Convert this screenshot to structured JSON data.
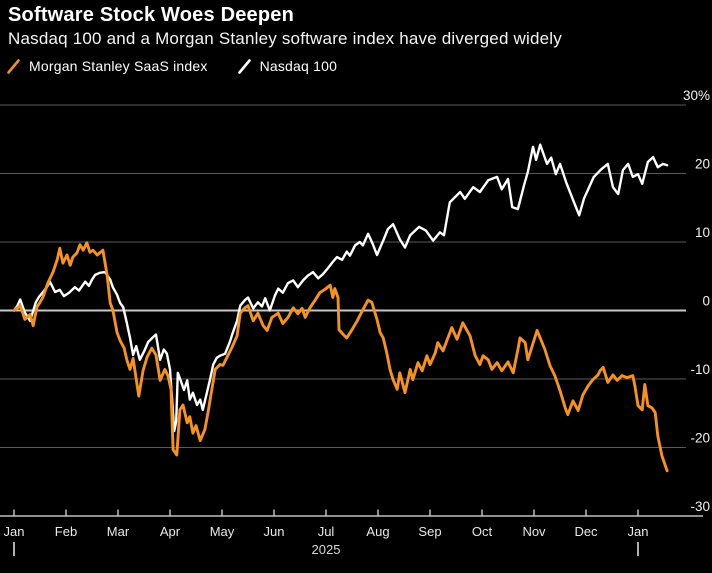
{
  "chart_data": {
    "type": "line",
    "title": "Software Stock Woes Deepen",
    "subtitle": "Nasdaq 100 and a Morgan Stanley software index have diverged widely",
    "x_unit": "months since Jan 2025 (0 = Jan 2025, 12 = Jan 2026)",
    "x_axis": {
      "tick_labels": [
        "Jan",
        "Feb",
        "Mar",
        "Apr",
        "May",
        "Jun",
        "Jul",
        "Aug",
        "Sep",
        "Oct",
        "Nov",
        "Dec",
        "Jan"
      ],
      "year_label": "2025",
      "year_label_month": 6,
      "year_marker_months": [
        0,
        12
      ]
    },
    "y_axis": {
      "unit": "%",
      "ylim": [
        -30,
        30
      ],
      "tick_values": [
        30,
        20,
        10,
        0,
        -10,
        -20,
        -30
      ],
      "tick_labels": [
        "30%",
        "20",
        "10",
        "0",
        "-10",
        "-20",
        "-30"
      ],
      "grid": true
    },
    "colors": {
      "background": "#000000",
      "grid": "#5a5a5a",
      "zero_line": "#c8c8c8",
      "axis_line": "#bebebe",
      "tick": "#d9d9d9",
      "month_label": "#e8e8e8",
      "year_label": "#d9d9d9",
      "y_label": "#f2f2f2"
    },
    "series": [
      {
        "name": "Morgan Stanley SaaS index",
        "color": "#f6921e",
        "end_value_pct": -23.4,
        "points": [
          [
            0,
            0
          ],
          [
            0.02,
            0.1
          ],
          [
            0.12,
            0.7
          ],
          [
            0.21,
            -1.3
          ],
          [
            0.31,
            -0.6
          ],
          [
            0.37,
            -2.2
          ],
          [
            0.44,
            0.5
          ],
          [
            0.5,
            1.2
          ],
          [
            0.56,
            2
          ],
          [
            0.65,
            4
          ],
          [
            0.75,
            5.6
          ],
          [
            0.83,
            7.4
          ],
          [
            0.88,
            9.1
          ],
          [
            0.94,
            6.9
          ],
          [
            1.02,
            8.1
          ],
          [
            1.08,
            6.6
          ],
          [
            1.13,
            7.8
          ],
          [
            1.21,
            8.4
          ],
          [
            1.27,
            9.6
          ],
          [
            1.33,
            8.8
          ],
          [
            1.4,
            9.9
          ],
          [
            1.46,
            8.5
          ],
          [
            1.52,
            8.8
          ],
          [
            1.6,
            8.1
          ],
          [
            1.71,
            8.8
          ],
          [
            1.79,
            5.2
          ],
          [
            1.85,
            1.1
          ],
          [
            1.9,
            0.1
          ],
          [
            1.98,
            -3.2
          ],
          [
            2.04,
            -4.4
          ],
          [
            2.12,
            -5.5
          ],
          [
            2.17,
            -7.2
          ],
          [
            2.23,
            -8.6
          ],
          [
            2.29,
            -7
          ],
          [
            2.35,
            -10
          ],
          [
            2.4,
            -12.5
          ],
          [
            2.48,
            -8.8
          ],
          [
            2.56,
            -6.8
          ],
          [
            2.65,
            -5.5
          ],
          [
            2.73,
            -6.5
          ],
          [
            2.81,
            -10.2
          ],
          [
            2.9,
            -8.6
          ],
          [
            2.96,
            -9.5
          ],
          [
            3.02,
            -11.5
          ],
          [
            3.06,
            -20.3
          ],
          [
            3.13,
            -21.1
          ],
          [
            3.19,
            -14.5
          ],
          [
            3.25,
            -13.8
          ],
          [
            3.33,
            -16.4
          ],
          [
            3.38,
            -15.5
          ],
          [
            3.44,
            -17.9
          ],
          [
            3.5,
            -16.8
          ],
          [
            3.58,
            -19
          ],
          [
            3.67,
            -17.4
          ],
          [
            3.73,
            -14.9
          ],
          [
            3.81,
            -11.3
          ],
          [
            3.87,
            -8.6
          ],
          [
            3.96,
            -7.9
          ],
          [
            4.02,
            -8
          ],
          [
            4.13,
            -6.3
          ],
          [
            4.19,
            -5.4
          ],
          [
            4.29,
            -3.7
          ],
          [
            4.35,
            -0.4
          ],
          [
            4.44,
            0.4
          ],
          [
            4.5,
            0.7
          ],
          [
            4.6,
            -1.5
          ],
          [
            4.69,
            -0.4
          ],
          [
            4.79,
            -2.2
          ],
          [
            4.87,
            -2.9
          ],
          [
            4.96,
            -1
          ],
          [
            5.08,
            -0.4
          ],
          [
            5.17,
            -1.9
          ],
          [
            5.27,
            -1
          ],
          [
            5.37,
            0.4
          ],
          [
            5.46,
            -0.5
          ],
          [
            5.54,
            0.3
          ],
          [
            5.6,
            -1
          ],
          [
            5.69,
            0.4
          ],
          [
            5.79,
            1.5
          ],
          [
            5.88,
            2.6
          ],
          [
            5.98,
            3.1
          ],
          [
            6.08,
            3.7
          ],
          [
            6.13,
            1.9
          ],
          [
            6.17,
            3.2
          ],
          [
            6.23,
            1.9
          ],
          [
            6.25,
            -2.8
          ],
          [
            6.33,
            -3.5
          ],
          [
            6.4,
            -4
          ],
          [
            6.5,
            -2.8
          ],
          [
            6.6,
            -1.5
          ],
          [
            6.75,
            0.7
          ],
          [
            6.81,
            1.5
          ],
          [
            6.88,
            1.2
          ],
          [
            6.98,
            -1.3
          ],
          [
            7.04,
            -3.2
          ],
          [
            7.1,
            -4
          ],
          [
            7.17,
            -6.2
          ],
          [
            7.23,
            -8.6
          ],
          [
            7.29,
            -10.1
          ],
          [
            7.37,
            -11.5
          ],
          [
            7.42,
            -9.1
          ],
          [
            7.52,
            -12
          ],
          [
            7.62,
            -8.6
          ],
          [
            7.67,
            -10.1
          ],
          [
            7.77,
            -7.6
          ],
          [
            7.85,
            -8.8
          ],
          [
            7.94,
            -6.6
          ],
          [
            8,
            -7.9
          ],
          [
            8.1,
            -6.2
          ],
          [
            8.15,
            -4.7
          ],
          [
            8.25,
            -5.9
          ],
          [
            8.42,
            -2.5
          ],
          [
            8.52,
            -4.2
          ],
          [
            8.63,
            -1.8
          ],
          [
            8.77,
            -3.7
          ],
          [
            8.87,
            -6.6
          ],
          [
            8.96,
            -7.9
          ],
          [
            9.02,
            -6.6
          ],
          [
            9.12,
            -7.2
          ],
          [
            9.19,
            -8.6
          ],
          [
            9.29,
            -7.6
          ],
          [
            9.38,
            -8.8
          ],
          [
            9.5,
            -7.5
          ],
          [
            9.6,
            -9.1
          ],
          [
            9.69,
            -5.7
          ],
          [
            9.73,
            -4
          ],
          [
            9.83,
            -4.7
          ],
          [
            9.88,
            -7.2
          ],
          [
            10.06,
            -2.9
          ],
          [
            10.12,
            -4
          ],
          [
            10.21,
            -5.7
          ],
          [
            10.31,
            -8.1
          ],
          [
            10.4,
            -9.5
          ],
          [
            10.5,
            -11.7
          ],
          [
            10.6,
            -14.2
          ],
          [
            10.65,
            -15.2
          ],
          [
            10.75,
            -13.2
          ],
          [
            10.85,
            -14.6
          ],
          [
            10.94,
            -12.3
          ],
          [
            11.04,
            -11
          ],
          [
            11.13,
            -10.1
          ],
          [
            11.23,
            -9.4
          ],
          [
            11.27,
            -8.8
          ],
          [
            11.33,
            -8.3
          ],
          [
            11.42,
            -10.5
          ],
          [
            11.52,
            -9.4
          ],
          [
            11.6,
            -10.2
          ],
          [
            11.69,
            -9.5
          ],
          [
            11.79,
            -9.8
          ],
          [
            11.9,
            -9.5
          ],
          [
            11.94,
            -11
          ],
          [
            12,
            -13.9
          ],
          [
            12.08,
            -14.5
          ],
          [
            12.13,
            -10.8
          ],
          [
            12.19,
            -13.9
          ],
          [
            12.27,
            -14.2
          ],
          [
            12.33,
            -14.9
          ],
          [
            12.38,
            -18.3
          ],
          [
            12.46,
            -21.2
          ],
          [
            12.56,
            -23.4
          ]
        ]
      },
      {
        "name": "Nasdaq 100",
        "color": "#ffffff",
        "end_value_pct": 21.2,
        "points": [
          [
            0,
            0
          ],
          [
            0.06,
            0.6
          ],
          [
            0.12,
            1.6
          ],
          [
            0.21,
            -0.3
          ],
          [
            0.31,
            -1.5
          ],
          [
            0.42,
            1.2
          ],
          [
            0.48,
            2
          ],
          [
            0.56,
            2.7
          ],
          [
            0.63,
            3.4
          ],
          [
            0.69,
            4.2
          ],
          [
            0.79,
            2.7
          ],
          [
            0.88,
            3
          ],
          [
            0.96,
            2.1
          ],
          [
            1.06,
            2.6
          ],
          [
            1.17,
            3.4
          ],
          [
            1.25,
            2.9
          ],
          [
            1.37,
            4.2
          ],
          [
            1.44,
            3.6
          ],
          [
            1.5,
            4.5
          ],
          [
            1.56,
            5.2
          ],
          [
            1.65,
            5.5
          ],
          [
            1.75,
            5.6
          ],
          [
            1.85,
            4.5
          ],
          [
            1.9,
            3.4
          ],
          [
            1.98,
            2.3
          ],
          [
            2.04,
            1.1
          ],
          [
            2.1,
            0.5
          ],
          [
            2.17,
            -1.8
          ],
          [
            2.23,
            -4
          ],
          [
            2.29,
            -6.5
          ],
          [
            2.35,
            -5.2
          ],
          [
            2.42,
            -7.2
          ],
          [
            2.5,
            -6
          ],
          [
            2.58,
            -4.6
          ],
          [
            2.66,
            -4
          ],
          [
            2.73,
            -3.5
          ],
          [
            2.81,
            -7.2
          ],
          [
            2.88,
            -5.7
          ],
          [
            2.94,
            -6.3
          ],
          [
            3,
            -8.6
          ],
          [
            3.04,
            -13
          ],
          [
            3.08,
            -17.6
          ],
          [
            3.12,
            -16.2
          ],
          [
            3.15,
            -9.1
          ],
          [
            3.21,
            -10.3
          ],
          [
            3.27,
            -11.6
          ],
          [
            3.33,
            -10.2
          ],
          [
            3.38,
            -13
          ],
          [
            3.44,
            -12
          ],
          [
            3.52,
            -13.8
          ],
          [
            3.58,
            -13
          ],
          [
            3.63,
            -14.5
          ],
          [
            3.71,
            -12
          ],
          [
            3.77,
            -10.1
          ],
          [
            3.83,
            -7.9
          ],
          [
            3.9,
            -6.9
          ],
          [
            3.96,
            -6.6
          ],
          [
            4.06,
            -6.3
          ],
          [
            4.15,
            -4.6
          ],
          [
            4.21,
            -3.2
          ],
          [
            4.29,
            -1.5
          ],
          [
            4.35,
            0.7
          ],
          [
            4.44,
            1.5
          ],
          [
            4.5,
            1.9
          ],
          [
            4.6,
            0.3
          ],
          [
            4.69,
            1.2
          ],
          [
            4.77,
            0.6
          ],
          [
            4.83,
            1.8
          ],
          [
            4.92,
            0
          ],
          [
            5.02,
            2.2
          ],
          [
            5.08,
            3.2
          ],
          [
            5.17,
            2.6
          ],
          [
            5.27,
            4
          ],
          [
            5.37,
            4.4
          ],
          [
            5.46,
            3.4
          ],
          [
            5.56,
            4.4
          ],
          [
            5.65,
            5.1
          ],
          [
            5.75,
            5.6
          ],
          [
            5.85,
            4.7
          ],
          [
            5.94,
            5.3
          ],
          [
            6.04,
            6.2
          ],
          [
            6.12,
            7
          ],
          [
            6.21,
            7.8
          ],
          [
            6.31,
            7.4
          ],
          [
            6.4,
            8.6
          ],
          [
            6.46,
            8
          ],
          [
            6.56,
            9.5
          ],
          [
            6.65,
            10
          ],
          [
            6.71,
            9.5
          ],
          [
            6.81,
            11.2
          ],
          [
            6.9,
            9.7
          ],
          [
            6.98,
            8.1
          ],
          [
            7.1,
            10.2
          ],
          [
            7.19,
            11.9
          ],
          [
            7.29,
            12.6
          ],
          [
            7.42,
            10.4
          ],
          [
            7.52,
            9.2
          ],
          [
            7.62,
            11
          ],
          [
            7.79,
            12.2
          ],
          [
            7.92,
            11.7
          ],
          [
            8.06,
            10.2
          ],
          [
            8.19,
            11.4
          ],
          [
            8.27,
            11
          ],
          [
            8.38,
            15.8
          ],
          [
            8.58,
            17.3
          ],
          [
            8.67,
            16.3
          ],
          [
            8.83,
            18
          ],
          [
            8.96,
            17.3
          ],
          [
            9.12,
            19
          ],
          [
            9.29,
            19.5
          ],
          [
            9.38,
            17.7
          ],
          [
            9.5,
            19.2
          ],
          [
            9.58,
            15.1
          ],
          [
            9.69,
            14.8
          ],
          [
            9.81,
            18.3
          ],
          [
            9.88,
            20.2
          ],
          [
            9.98,
            23.9
          ],
          [
            10.04,
            22
          ],
          [
            10.12,
            24.2
          ],
          [
            10.25,
            21.4
          ],
          [
            10.33,
            22.3
          ],
          [
            10.42,
            19.9
          ],
          [
            10.5,
            21.4
          ],
          [
            10.62,
            18.7
          ],
          [
            10.77,
            15.8
          ],
          [
            10.87,
            13.9
          ],
          [
            10.96,
            16.3
          ],
          [
            11.15,
            19.5
          ],
          [
            11.29,
            20.6
          ],
          [
            11.42,
            21.4
          ],
          [
            11.52,
            18
          ],
          [
            11.62,
            17
          ],
          [
            11.71,
            20.5
          ],
          [
            11.81,
            21.4
          ],
          [
            11.9,
            19.5
          ],
          [
            12,
            19.9
          ],
          [
            12.08,
            18.5
          ],
          [
            12.19,
            21.7
          ],
          [
            12.29,
            22.4
          ],
          [
            12.38,
            20.9
          ],
          [
            12.48,
            21.4
          ],
          [
            12.56,
            21.2
          ]
        ]
      }
    ],
    "legend_position": "top-left"
  }
}
